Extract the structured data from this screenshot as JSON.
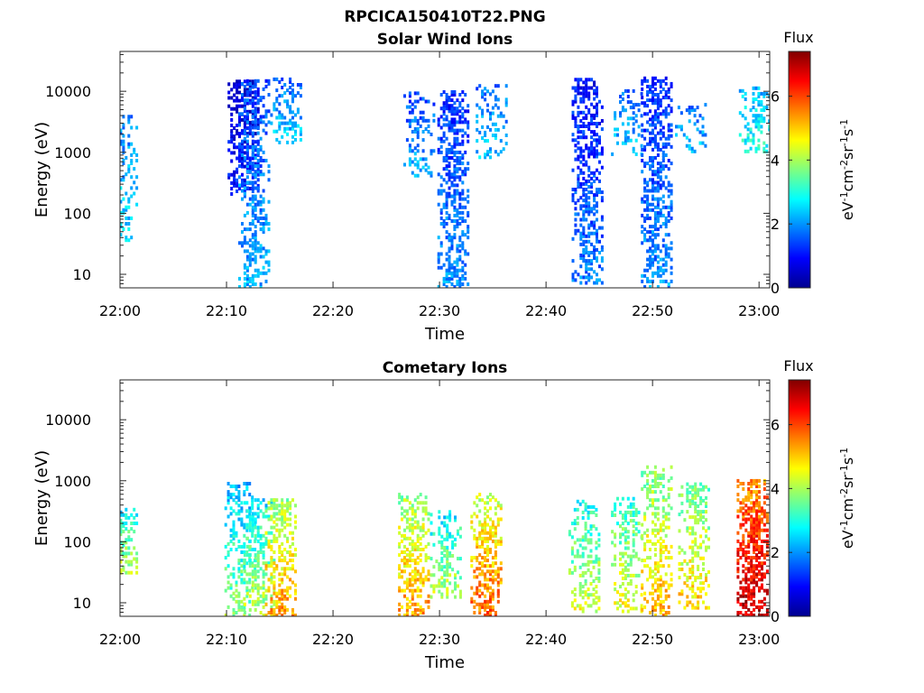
{
  "figure": {
    "title": "RPCICA150410T22.PNG"
  },
  "chart_data": [
    {
      "type": "heatmap",
      "title": "Solar Wind Ions",
      "xlabel": "Time",
      "ylabel": "Energy (eV)",
      "y_scale": "log",
      "ylim": [
        6,
        45000
      ],
      "xlim": [
        "22:00",
        "23:01"
      ],
      "x_ticks": [
        "22:00",
        "22:10",
        "22:20",
        "22:30",
        "22:40",
        "22:50",
        "23:00"
      ],
      "y_ticks": [
        "10",
        "100",
        "1000",
        "10000"
      ],
      "colorbar": {
        "label": "Flux",
        "unit": "eV-1cm-2sr-1s-1",
        "range": [
          0,
          7.4
        ],
        "ticks": [
          "0",
          "2",
          "4",
          "6"
        ],
        "colormap": "jet"
      },
      "bursts": [
        {
          "t_min": 0.1,
          "e_low": 35,
          "e_high": 4000,
          "flux": 2.6,
          "density": 0.35
        },
        {
          "t_min": 11.5,
          "e_low": 200,
          "e_high": 15000,
          "flux": 1.2,
          "density": 0.55
        },
        {
          "t_min": 12.5,
          "e_low": 6,
          "e_high": 15000,
          "flux": 2.2,
          "density": 0.5
        },
        {
          "t_min": 15.5,
          "e_low": 1400,
          "e_high": 16000,
          "flux": 2.4,
          "density": 0.5
        },
        {
          "t_min": 28.0,
          "e_low": 400,
          "e_high": 9000,
          "flux": 2.2,
          "density": 0.35
        },
        {
          "t_min": 31.2,
          "e_low": 6,
          "e_high": 10000,
          "flux": 2.0,
          "density": 0.6
        },
        {
          "t_min": 34.8,
          "e_low": 800,
          "e_high": 12000,
          "flux": 2.4,
          "density": 0.35
        },
        {
          "t_min": 43.8,
          "e_low": 7,
          "e_high": 16000,
          "flux": 1.8,
          "density": 0.55
        },
        {
          "t_min": 47.5,
          "e_low": 900,
          "e_high": 10000,
          "flux": 2.4,
          "density": 0.3
        },
        {
          "t_min": 50.3,
          "e_low": 6,
          "e_high": 16000,
          "flux": 2.0,
          "density": 0.6
        },
        {
          "t_min": 53.5,
          "e_low": 1000,
          "e_high": 6000,
          "flux": 2.4,
          "density": 0.3
        },
        {
          "t_min": 59.5,
          "e_low": 1000,
          "e_high": 12000,
          "flux": 3.0,
          "density": 0.4
        }
      ]
    },
    {
      "type": "heatmap",
      "title": "Cometary Ions",
      "xlabel": "Time",
      "ylabel": "Energy (eV)",
      "y_scale": "log",
      "ylim": [
        6,
        45000
      ],
      "xlim": [
        "22:00",
        "23:01"
      ],
      "x_ticks": [
        "22:00",
        "22:10",
        "22:20",
        "22:30",
        "22:40",
        "22:50",
        "23:00"
      ],
      "y_ticks": [
        "10",
        "100",
        "1000",
        "10000"
      ],
      "colorbar": {
        "label": "Flux",
        "unit": "eV-1cm-2sr-1s-1",
        "range": [
          0,
          7.4
        ],
        "ticks": [
          "0",
          "2",
          "4",
          "6"
        ],
        "colormap": "jet"
      },
      "bursts": [
        {
          "t_min": 0.1,
          "e_low": 30,
          "e_high": 350,
          "flux": 3.4,
          "density": 0.5
        },
        {
          "t_min": 11.2,
          "e_low": 6,
          "e_high": 900,
          "flux": 3.0,
          "density": 0.45
        },
        {
          "t_min": 13.0,
          "e_low": 6,
          "e_high": 500,
          "flux": 3.4,
          "density": 0.45
        },
        {
          "t_min": 15.0,
          "e_low": 6,
          "e_high": 500,
          "flux": 4.6,
          "density": 0.55
        },
        {
          "t_min": 27.5,
          "e_low": 6,
          "e_high": 600,
          "flux": 4.6,
          "density": 0.6
        },
        {
          "t_min": 30.5,
          "e_low": 12,
          "e_high": 300,
          "flux": 3.4,
          "density": 0.5
        },
        {
          "t_min": 34.3,
          "e_low": 6,
          "e_high": 600,
          "flux": 5.0,
          "density": 0.6
        },
        {
          "t_min": 43.5,
          "e_low": 7,
          "e_high": 450,
          "flux": 3.6,
          "density": 0.4
        },
        {
          "t_min": 47.5,
          "e_low": 7,
          "e_high": 500,
          "flux": 3.8,
          "density": 0.4
        },
        {
          "t_min": 50.3,
          "e_low": 6,
          "e_high": 1700,
          "flux": 4.4,
          "density": 0.5
        },
        {
          "t_min": 53.8,
          "e_low": 8,
          "e_high": 900,
          "flux": 4.2,
          "density": 0.45
        },
        {
          "t_min": 59.3,
          "e_low": 6,
          "e_high": 1000,
          "flux": 6.2,
          "density": 0.75
        }
      ]
    }
  ]
}
